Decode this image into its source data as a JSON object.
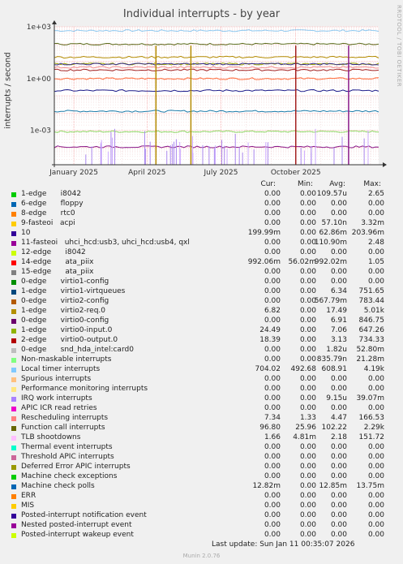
{
  "title": "Individual interrupts - by year",
  "ylabel": "interrupts / second",
  "watermark": "RRDTOOL / TOBI OETIKER",
  "footer": "Munin 2.0.76",
  "last_update": "Last update:  Sun Jan 11 00:35:07 2026",
  "headers": {
    "cur": "Cur:",
    "min": "Min:",
    "avg": "Avg:",
    "max": "Max:"
  },
  "chart_data": {
    "type": "line",
    "title": "Individual interrupts - by year",
    "ylabel": "interrupts / second",
    "yscale": "log",
    "ylim": [
      1e-05,
      1000
    ],
    "yticks": [
      "1e-03",
      "1e+00",
      "1e+03"
    ],
    "ytick_values": [
      0.001,
      1,
      1000
    ],
    "xticks": [
      "January 2025",
      "April 2025",
      "July 2025",
      "October 2025"
    ],
    "x_range": [
      "2024-12-08",
      "2026-01-11"
    ],
    "xtick_dates": [
      "2025-01-01",
      "2025-04-01",
      "2025-07-01",
      "2025-10-01"
    ],
    "grid": true,
    "series": [
      {
        "name": "Local timer interrupts",
        "color": "#8cc7ef",
        "level": 600
      },
      {
        "name": "Function call interrupts",
        "color": "#5a6e1e",
        "level": 100
      },
      {
        "name": "Non-maskable interrupts",
        "color": "#8fd966",
        "level": 0.00084
      },
      {
        "name": "Machine check polls",
        "color": "#1b7aa8",
        "level": 0.01285
      },
      {
        "name": "14-edge ata_piix",
        "color": "#ff6e3c",
        "level": 0.992
      },
      {
        "name": "10",
        "color": "#1a1a8a",
        "level": 0.2
      },
      {
        "name": "1-edge virtio2-req.0",
        "color": "#b38a00",
        "level": 17.49
      },
      {
        "name": "2-edge virtio0-output.0",
        "color": "#a32020",
        "level": 3.13
      },
      {
        "name": "1-edge virtio0-input.0",
        "color": "#9ca800",
        "level": 7.06
      },
      {
        "name": "Rescheduling interrupts",
        "color": "#f38a8a",
        "level": 4.47
      },
      {
        "name": "0-edge virtio0-config",
        "color": "#3a2e8c",
        "level": 6.91
      },
      {
        "name": "11-fasteoi uhci_hcd",
        "color": "#8a1a8a",
        "level": 0.00011
      }
    ]
  },
  "legend": [
    {
      "color": "#00cc00",
      "name": "1-edge      i8042",
      "cur": "0.00",
      "min": "0.00",
      "avg": "109.57u",
      "max": "2.65"
    },
    {
      "color": "#0066b3",
      "name": "6-edge      floppy",
      "cur": "0.00",
      "min": "0.00",
      "avg": "0.00",
      "max": "0.00"
    },
    {
      "color": "#ff8000",
      "name": "8-edge      rtc0",
      "cur": "0.00",
      "min": "0.00",
      "avg": "0.00",
      "max": "0.00"
    },
    {
      "color": "#ffcc00",
      "name": "9-fasteoi   acpi",
      "cur": "0.00",
      "min": "0.00",
      "avg": "57.10n",
      "max": "3.32m"
    },
    {
      "color": "#330099",
      "name": "10",
      "cur": "199.99m",
      "min": "0.00",
      "avg": "62.86m",
      "max": "203.96m"
    },
    {
      "color": "#990099",
      "name": "11-fasteoi   uhci_hcd:usb3, uhci_hcd:usb4, qxl",
      "cur": "0.00",
      "min": "0.00",
      "avg": "110.90m",
      "max": "2.48"
    },
    {
      "color": "#ccff00",
      "name": "12-edge      i8042",
      "cur": "0.00",
      "min": "0.00",
      "avg": "0.00",
      "max": "0.00"
    },
    {
      "color": "#ff0000",
      "name": "14-edge      ata_piix",
      "cur": "992.06m",
      "min": "56.02m",
      "avg": "992.02m",
      "max": "1.05"
    },
    {
      "color": "#808080",
      "name": "15-edge      ata_piix",
      "cur": "0.00",
      "min": "0.00",
      "avg": "0.00",
      "max": "0.00"
    },
    {
      "color": "#008f00",
      "name": "0-edge      virtio1-config",
      "cur": "0.00",
      "min": "0.00",
      "avg": "0.00",
      "max": "0.00"
    },
    {
      "color": "#00487d",
      "name": "1-edge      virtio1-virtqueues",
      "cur": "0.00",
      "min": "0.00",
      "avg": "6.34",
      "max": "751.65"
    },
    {
      "color": "#b35a00",
      "name": "0-edge      virtio2-config",
      "cur": "0.00",
      "min": "0.00",
      "avg": "567.79m",
      "max": "783.44"
    },
    {
      "color": "#b38f00",
      "name": "1-edge      virtio2-req.0",
      "cur": "6.82",
      "min": "0.00",
      "avg": "17.49",
      "max": "5.01k"
    },
    {
      "color": "#6b006b",
      "name": "0-edge      virtio0-config",
      "cur": "0.00",
      "min": "0.00",
      "avg": "6.91",
      "max": "846.75"
    },
    {
      "color": "#8fb300",
      "name": "1-edge      virtio0-input.0",
      "cur": "24.49",
      "min": "0.00",
      "avg": "7.06",
      "max": "647.26"
    },
    {
      "color": "#b30000",
      "name": "2-edge      virtio0-output.0",
      "cur": "18.39",
      "min": "0.00",
      "avg": "3.13",
      "max": "734.33"
    },
    {
      "color": "#bebebe",
      "name": "0-edge      snd_hda_intel:card0",
      "cur": "0.00",
      "min": "0.00",
      "avg": "1.82u",
      "max": "52.80m"
    },
    {
      "color": "#80ff80",
      "name": "Non-maskable interrupts",
      "cur": "0.00",
      "min": "0.00",
      "avg": "835.79n",
      "max": "21.28m"
    },
    {
      "color": "#80c9ff",
      "name": "Local timer interrupts",
      "cur": "704.02",
      "min": "492.68",
      "avg": "608.91",
      "max": "4.19k"
    },
    {
      "color": "#ffc080",
      "name": "Spurious interrupts",
      "cur": "0.00",
      "min": "0.00",
      "avg": "0.00",
      "max": "0.00"
    },
    {
      "color": "#ffe680",
      "name": "Performance monitoring interrupts",
      "cur": "0.00",
      "min": "0.00",
      "avg": "0.00",
      "max": "0.00"
    },
    {
      "color": "#aa80ff",
      "name": "IRQ work interrupts",
      "cur": "0.00",
      "min": "0.00",
      "avg": "9.15u",
      "max": "39.07m"
    },
    {
      "color": "#ee00cc",
      "name": "APIC ICR read retries",
      "cur": "0.00",
      "min": "0.00",
      "avg": "0.00",
      "max": "0.00"
    },
    {
      "color": "#ff8080",
      "name": "Rescheduling interrupts",
      "cur": "7.34",
      "min": "1.33",
      "avg": "4.47",
      "max": "166.53"
    },
    {
      "color": "#666600",
      "name": "Function call interrupts",
      "cur": "96.80",
      "min": "25.96",
      "avg": "102.22",
      "max": "2.29k"
    },
    {
      "color": "#ffbfff",
      "name": "TLB shootdowns",
      "cur": "1.66",
      "min": "4.81m",
      "avg": "2.18",
      "max": "151.72"
    },
    {
      "color": "#00ffcc",
      "name": "Thermal event interrupts",
      "cur": "0.00",
      "min": "0.00",
      "avg": "0.00",
      "max": "0.00"
    },
    {
      "color": "#cc6699",
      "name": "Threshold APIC interrupts",
      "cur": "0.00",
      "min": "0.00",
      "avg": "0.00",
      "max": "0.00"
    },
    {
      "color": "#999900",
      "name": "Deferred Error APIC interrupts",
      "cur": "0.00",
      "min": "0.00",
      "avg": "0.00",
      "max": "0.00"
    },
    {
      "color": "#00cc00",
      "name": "Machine check exceptions",
      "cur": "0.00",
      "min": "0.00",
      "avg": "0.00",
      "max": "0.00"
    },
    {
      "color": "#0066b3",
      "name": "Machine check polls",
      "cur": "12.82m",
      "min": "0.00",
      "avg": "12.85m",
      "max": "13.75m"
    },
    {
      "color": "#ff8000",
      "name": "ERR",
      "cur": "0.00",
      "min": "0.00",
      "avg": "0.00",
      "max": "0.00"
    },
    {
      "color": "#ffcc00",
      "name": "MIS",
      "cur": "0.00",
      "min": "0.00",
      "avg": "0.00",
      "max": "0.00"
    },
    {
      "color": "#330099",
      "name": "Posted-interrupt notification event",
      "cur": "0.00",
      "min": "0.00",
      "avg": "0.00",
      "max": "0.00"
    },
    {
      "color": "#990099",
      "name": "Nested posted-interrupt event",
      "cur": "0.00",
      "min": "0.00",
      "avg": "0.00",
      "max": "0.00"
    },
    {
      "color": "#ccff00",
      "name": "Posted-interrupt wakeup event",
      "cur": "0.00",
      "min": "0.00",
      "avg": "0.00",
      "max": "0.00"
    }
  ]
}
